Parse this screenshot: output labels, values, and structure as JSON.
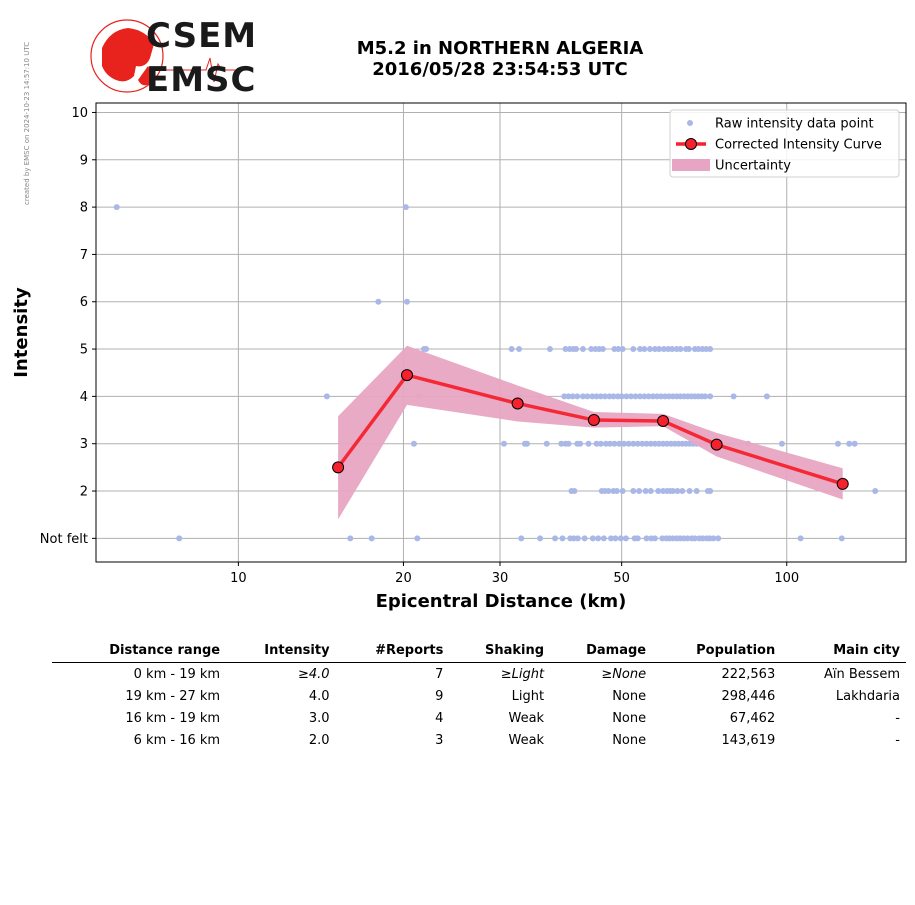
{
  "side_note": "created by EMSC on 2024-10-23 14:57:10 UTC",
  "logo": {
    "line1": "CSEM",
    "line2": "EMSC",
    "accent": "#e8221c"
  },
  "title": {
    "line1": "M5.2 in NORTHERN ALGERIA",
    "line2": "2016/05/28 23:54:53 UTC"
  },
  "chart_data": {
    "type": "scatter",
    "xlabel": "Epicentral Distance (km)",
    "ylabel": "Intensity",
    "xscale": "log",
    "xlim": [
      5.5,
      165
    ],
    "ylim": [
      0.5,
      10.2
    ],
    "xticks": [
      {
        "v": 10,
        "label": "10"
      },
      {
        "v": 20,
        "label": "20"
      },
      {
        "v": 30,
        "label": "30"
      },
      {
        "v": 50,
        "label": "50"
      },
      {
        "v": 100,
        "label": "100"
      }
    ],
    "yticks": [
      {
        "v": 1,
        "label": "Not felt"
      },
      {
        "v": 2,
        "label": "2"
      },
      {
        "v": 3,
        "label": "3"
      },
      {
        "v": 4,
        "label": "4"
      },
      {
        "v": 5,
        "label": "5"
      },
      {
        "v": 6,
        "label": "6"
      },
      {
        "v": 7,
        "label": "7"
      },
      {
        "v": 8,
        "label": "8"
      },
      {
        "v": 9,
        "label": "9"
      },
      {
        "v": 10,
        "label": "10"
      }
    ],
    "grid": true,
    "legend_position": "top-right",
    "colors": {
      "raw": "#aab8e8",
      "curve": "#f5222d",
      "band": "#e8a5c3"
    },
    "series": [
      {
        "name": "Raw intensity data point",
        "kind": "points",
        "points": [
          [
            6,
            8
          ],
          [
            20.2,
            8
          ],
          [
            18,
            6
          ],
          [
            20.3,
            6
          ],
          [
            21.8,
            5
          ],
          [
            22,
            5
          ],
          [
            31.5,
            5
          ],
          [
            32.5,
            5
          ],
          [
            37,
            5
          ],
          [
            39.5,
            5
          ],
          [
            40.2,
            5
          ],
          [
            40.8,
            5
          ],
          [
            41.3,
            5
          ],
          [
            42.5,
            5
          ],
          [
            44,
            5
          ],
          [
            44.8,
            5
          ],
          [
            45.5,
            5
          ],
          [
            46.2,
            5
          ],
          [
            48.5,
            5
          ],
          [
            49.3,
            5
          ],
          [
            50.2,
            5
          ],
          [
            52.5,
            5
          ],
          [
            54,
            5
          ],
          [
            55,
            5
          ],
          [
            56.3,
            5
          ],
          [
            57.5,
            5
          ],
          [
            58.5,
            5
          ],
          [
            59.7,
            5
          ],
          [
            60.8,
            5
          ],
          [
            61.8,
            5
          ],
          [
            63,
            5
          ],
          [
            64,
            5
          ],
          [
            65.5,
            5
          ],
          [
            66.3,
            5
          ],
          [
            68,
            5
          ],
          [
            69,
            5
          ],
          [
            70.2,
            5
          ],
          [
            71.3,
            5
          ],
          [
            72.5,
            5
          ],
          [
            14.5,
            4
          ],
          [
            21.3,
            4
          ],
          [
            32.5,
            4
          ],
          [
            35.5,
            4
          ],
          [
            39.3,
            4
          ],
          [
            40,
            4
          ],
          [
            40.7,
            4
          ],
          [
            41.5,
            4
          ],
          [
            42.5,
            4
          ],
          [
            43.3,
            4
          ],
          [
            44.2,
            4
          ],
          [
            45,
            4
          ],
          [
            45.8,
            4
          ],
          [
            46.6,
            4
          ],
          [
            47.5,
            4
          ],
          [
            48.3,
            4
          ],
          [
            49.2,
            4
          ],
          [
            50,
            4
          ],
          [
            51,
            4
          ],
          [
            52,
            4
          ],
          [
            53,
            4
          ],
          [
            54,
            4
          ],
          [
            55,
            4
          ],
          [
            56,
            4
          ],
          [
            57,
            4
          ],
          [
            58,
            4
          ],
          [
            59,
            4
          ],
          [
            60,
            4
          ],
          [
            61,
            4
          ],
          [
            62,
            4
          ],
          [
            63,
            4
          ],
          [
            64,
            4
          ],
          [
            65,
            4
          ],
          [
            66,
            4
          ],
          [
            67,
            4
          ],
          [
            68,
            4
          ],
          [
            69,
            4
          ],
          [
            70,
            4
          ],
          [
            71,
            4
          ],
          [
            72.5,
            4
          ],
          [
            80,
            4
          ],
          [
            92,
            4
          ],
          [
            20.9,
            3
          ],
          [
            30.5,
            3
          ],
          [
            33.3,
            3
          ],
          [
            33.6,
            3
          ],
          [
            36.5,
            3
          ],
          [
            38.8,
            3
          ],
          [
            39.5,
            3
          ],
          [
            40,
            3
          ],
          [
            41.5,
            3
          ],
          [
            42,
            3
          ],
          [
            43.5,
            3
          ],
          [
            45,
            3
          ],
          [
            45.8,
            3
          ],
          [
            46.8,
            3
          ],
          [
            47.6,
            3
          ],
          [
            48.5,
            3
          ],
          [
            49.5,
            3
          ],
          [
            50.5,
            3
          ],
          [
            51.5,
            3
          ],
          [
            52.5,
            3
          ],
          [
            53.5,
            3
          ],
          [
            54.5,
            3
          ],
          [
            55.5,
            3
          ],
          [
            56.5,
            3
          ],
          [
            57.5,
            3
          ],
          [
            58.5,
            3
          ],
          [
            59.5,
            3
          ],
          [
            60.5,
            3
          ],
          [
            61.5,
            3
          ],
          [
            62.5,
            3
          ],
          [
            63.5,
            3
          ],
          [
            64.5,
            3
          ],
          [
            65.5,
            3
          ],
          [
            66.5,
            3
          ],
          [
            67.5,
            3
          ],
          [
            68.5,
            3
          ],
          [
            69.5,
            3
          ],
          [
            71,
            3
          ],
          [
            72.5,
            3
          ],
          [
            75,
            3
          ],
          [
            85,
            3
          ],
          [
            98,
            3
          ],
          [
            124,
            3
          ],
          [
            130,
            3
          ],
          [
            133,
            3
          ],
          [
            40.5,
            2
          ],
          [
            41,
            2
          ],
          [
            46,
            2
          ],
          [
            46.6,
            2
          ],
          [
            47.3,
            2
          ],
          [
            48.3,
            2
          ],
          [
            49,
            2
          ],
          [
            50.2,
            2
          ],
          [
            52.5,
            2
          ],
          [
            53.8,
            2
          ],
          [
            55.3,
            2
          ],
          [
            56.5,
            2
          ],
          [
            58.3,
            2
          ],
          [
            59.5,
            2
          ],
          [
            60.5,
            2
          ],
          [
            61.3,
            2
          ],
          [
            62,
            2
          ],
          [
            63.2,
            2
          ],
          [
            64.5,
            2
          ],
          [
            66.5,
            2
          ],
          [
            68.5,
            2
          ],
          [
            71.8,
            2
          ],
          [
            72.5,
            2
          ],
          [
            145,
            2
          ],
          [
            7.8,
            1
          ],
          [
            16,
            1
          ],
          [
            17.5,
            1
          ],
          [
            21.2,
            1
          ],
          [
            32.8,
            1
          ],
          [
            35.5,
            1
          ],
          [
            37.8,
            1
          ],
          [
            39,
            1
          ],
          [
            40.3,
            1
          ],
          [
            40.9,
            1
          ],
          [
            41.6,
            1
          ],
          [
            42.8,
            1
          ],
          [
            44.3,
            1
          ],
          [
            45.3,
            1
          ],
          [
            46.4,
            1
          ],
          [
            47.8,
            1
          ],
          [
            48.7,
            1
          ],
          [
            49.8,
            1
          ],
          [
            50.9,
            1
          ],
          [
            52.8,
            1
          ],
          [
            53.5,
            1
          ],
          [
            55.5,
            1
          ],
          [
            56.6,
            1
          ],
          [
            57.5,
            1
          ],
          [
            59.3,
            1
          ],
          [
            60.3,
            1
          ],
          [
            61.1,
            1
          ],
          [
            62,
            1
          ],
          [
            63,
            1
          ],
          [
            63.9,
            1
          ],
          [
            64.9,
            1
          ],
          [
            65.9,
            1
          ],
          [
            67.1,
            1
          ],
          [
            68,
            1
          ],
          [
            69.3,
            1
          ],
          [
            70.3,
            1
          ],
          [
            71.5,
            1
          ],
          [
            72.4,
            1
          ],
          [
            73.5,
            1
          ],
          [
            75,
            1
          ],
          [
            106,
            1
          ],
          [
            126,
            1
          ]
        ]
      },
      {
        "name": "Corrected Intensity Curve",
        "kind": "line",
        "points": [
          [
            15.2,
            2.5
          ],
          [
            20.3,
            4.45
          ],
          [
            32.3,
            3.85
          ],
          [
            44.5,
            3.5
          ],
          [
            59.5,
            3.48
          ],
          [
            74.5,
            2.98
          ],
          [
            126.5,
            2.15
          ]
        ]
      },
      {
        "name": "Uncertainty",
        "kind": "band",
        "x": [
          15.2,
          20.3,
          32.3,
          44.5,
          59.5,
          74.5,
          126.5
        ],
        "lower": [
          1.4,
          3.82,
          3.47,
          3.34,
          3.37,
          2.73,
          1.82
        ],
        "upper": [
          3.58,
          5.07,
          4.23,
          3.67,
          3.63,
          3.23,
          2.48
        ]
      }
    ]
  },
  "table": {
    "headers": [
      "Distance range",
      "Intensity",
      "#Reports",
      "Shaking",
      "Damage",
      "Population",
      "Main city"
    ],
    "rows": [
      {
        "distance": "0 km -   19 km",
        "intensity": "≥4.0",
        "reports": "7",
        "shaking": "≥Light",
        "damage": "≥None",
        "population": "222,563",
        "city": "Aïn Bessem",
        "italic": true
      },
      {
        "distance": "19 km -   27 km",
        "intensity": "4.0",
        "reports": "9",
        "shaking": "Light",
        "damage": "None",
        "population": "298,446",
        "city": "Lakhdaria",
        "italic": false
      },
      {
        "distance": "16 km -   19 km",
        "intensity": "3.0",
        "reports": "4",
        "shaking": "Weak",
        "damage": "None",
        "population": "67,462",
        "city": "-",
        "italic": false
      },
      {
        "distance": "6 km -   16 km",
        "intensity": "2.0",
        "reports": "3",
        "shaking": "Weak",
        "damage": "None",
        "population": "143,619",
        "city": "-",
        "italic": false
      }
    ]
  }
}
